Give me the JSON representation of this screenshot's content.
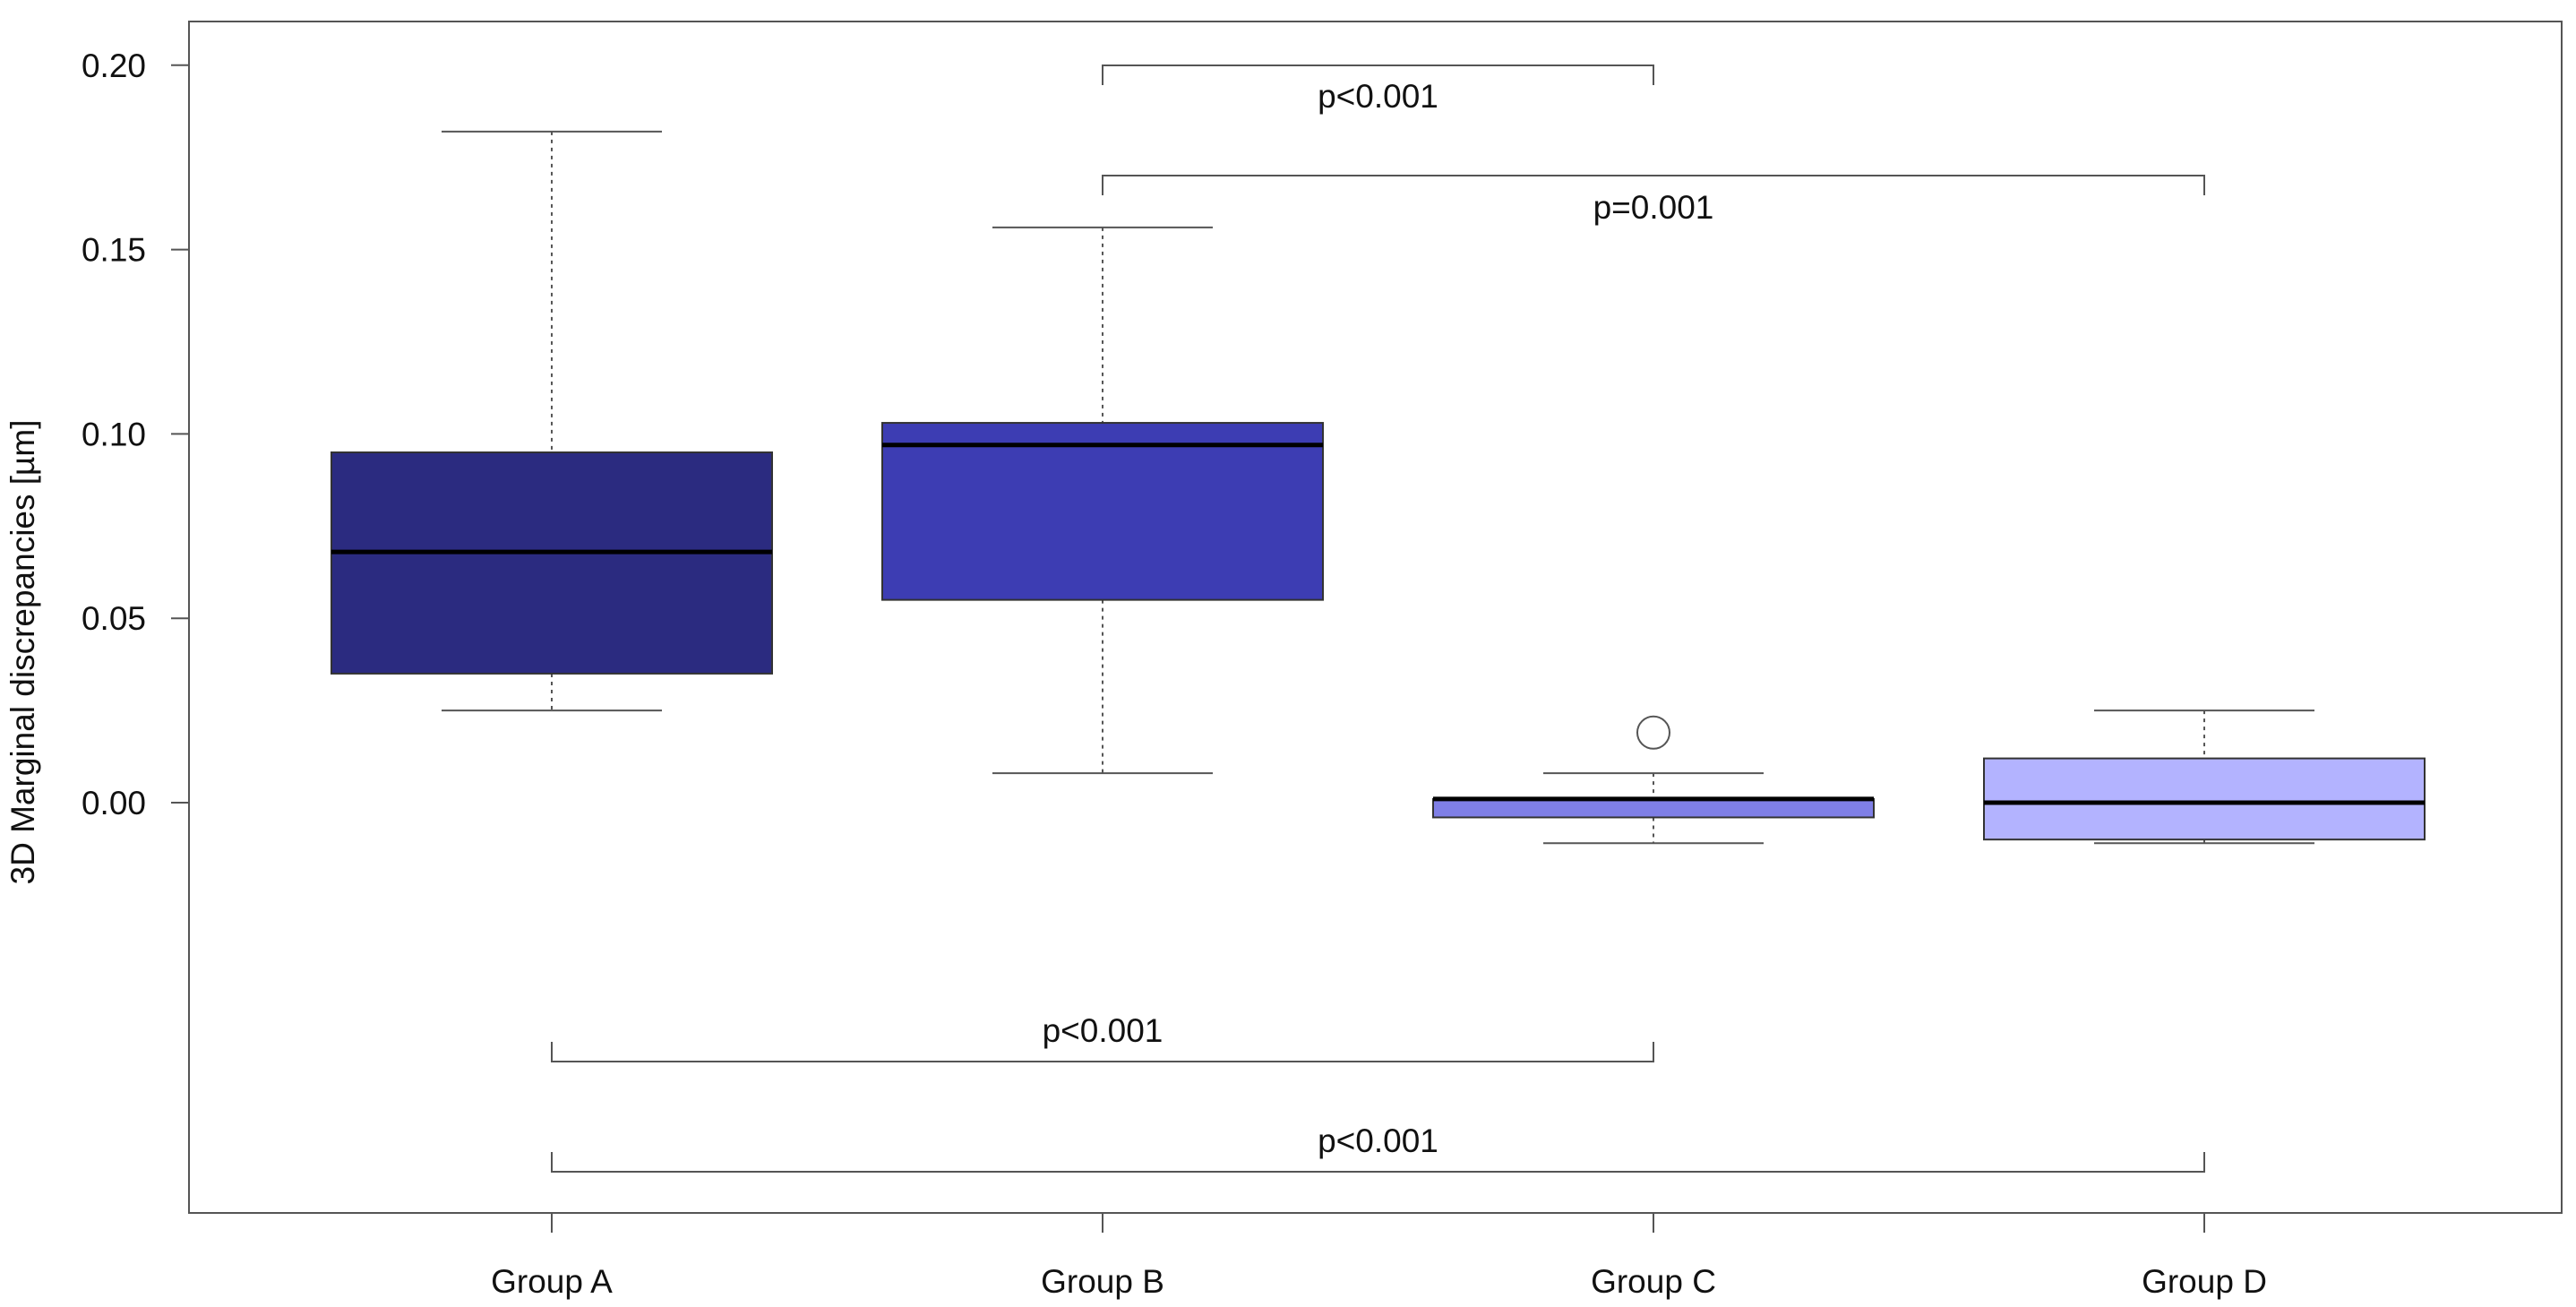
{
  "chart_data": {
    "type": "boxplot",
    "title": "",
    "xlabel": "",
    "ylabel": "3D Marginal discrepancies [µm]",
    "ylim": [
      -0.113,
      0.212
    ],
    "y_ticks": [
      0.0,
      0.05,
      0.1,
      0.15,
      0.2
    ],
    "y_tick_labels": [
      "0.00",
      "0.05",
      "0.10",
      "0.15",
      "0.20"
    ],
    "grid": false,
    "legend": "none",
    "categories": [
      "Group A",
      "Group B",
      "Group C",
      "Group D"
    ],
    "boxes": [
      {
        "group": "Group A",
        "whisker_low": 0.025,
        "q1": 0.035,
        "median": 0.068,
        "q3": 0.095,
        "whisker_high": 0.182,
        "outliers": [],
        "color": "#2b2b80"
      },
      {
        "group": "Group B",
        "whisker_low": 0.008,
        "q1": 0.055,
        "median": 0.097,
        "q3": 0.103,
        "whisker_high": 0.156,
        "outliers": [],
        "color": "#3d3db3"
      },
      {
        "group": "Group C",
        "whisker_low": -0.011,
        "q1": -0.004,
        "median": 0.001,
        "q3": 0.001,
        "whisker_high": 0.008,
        "outliers": [
          0.019
        ],
        "color": "#7f7fe6"
      },
      {
        "group": "Group D",
        "whisker_low": -0.011,
        "q1": -0.01,
        "median": 0.0,
        "q3": 0.012,
        "whisker_high": 0.025,
        "outliers": [],
        "color": "#b3b3ff"
      }
    ],
    "comparisons": [
      {
        "from": "Group B",
        "to": "Group C",
        "label": "p<0.001",
        "position": "above"
      },
      {
        "from": "Group B",
        "to": "Group D",
        "label": "p=0.001",
        "position": "above"
      },
      {
        "from": "Group A",
        "to": "Group C",
        "label": "p<0.001",
        "position": "below"
      },
      {
        "from": "Group A",
        "to": "Group D",
        "label": "p<0.001",
        "position": "below"
      }
    ]
  }
}
